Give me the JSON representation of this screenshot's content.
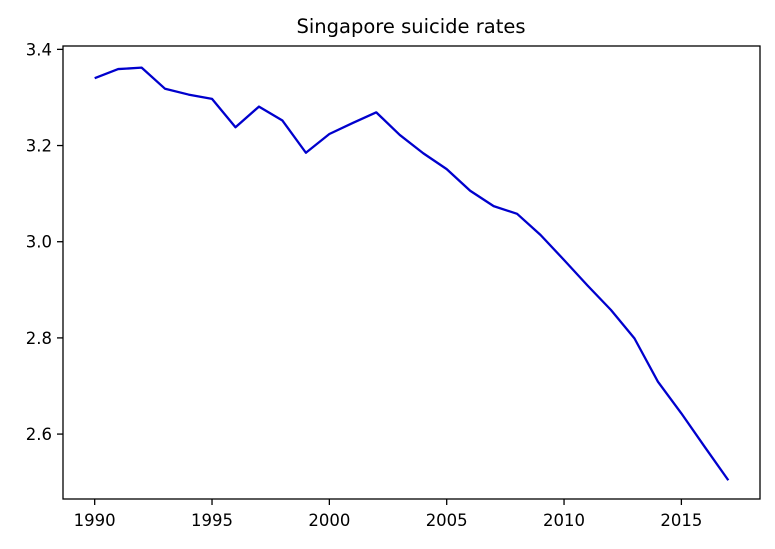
{
  "chart_data": {
    "type": "line",
    "title": "Singapore suicide rates",
    "xlabel": "",
    "ylabel": "",
    "xlim": [
      1988.65,
      2018.35
    ],
    "ylim": [
      2.465,
      3.407
    ],
    "xticks": [
      1990,
      1995,
      2000,
      2005,
      2010,
      2015
    ],
    "yticks": [
      2.6,
      2.8,
      3.0,
      3.2,
      3.4
    ],
    "xtick_labels": [
      "1990",
      "1995",
      "2000",
      "2005",
      "2010",
      "2015"
    ],
    "ytick_labels": [
      "2.6",
      "2.8",
      "3.0",
      "3.2",
      "3.4"
    ],
    "grid": false,
    "line_color": "#0000cd",
    "series": [
      {
        "x": [
          1990,
          1991,
          1992,
          1993,
          1994,
          1995,
          1996,
          1997,
          1998,
          1999,
          2000,
          2001,
          2002,
          2003,
          2004,
          2005,
          2006,
          2007,
          2008,
          2009,
          2010,
          2011,
          2012,
          2013,
          2014,
          2015,
          2016,
          2017
        ],
        "values": [
          3.34,
          3.359,
          3.362,
          3.318,
          3.306,
          3.297,
          3.238,
          3.281,
          3.252,
          3.185,
          3.224,
          3.247,
          3.269,
          3.222,
          3.184,
          3.151,
          3.106,
          3.074,
          3.058,
          3.014,
          2.962,
          2.909,
          2.858,
          2.799,
          2.709,
          2.643,
          2.573,
          2.504
        ]
      }
    ]
  }
}
